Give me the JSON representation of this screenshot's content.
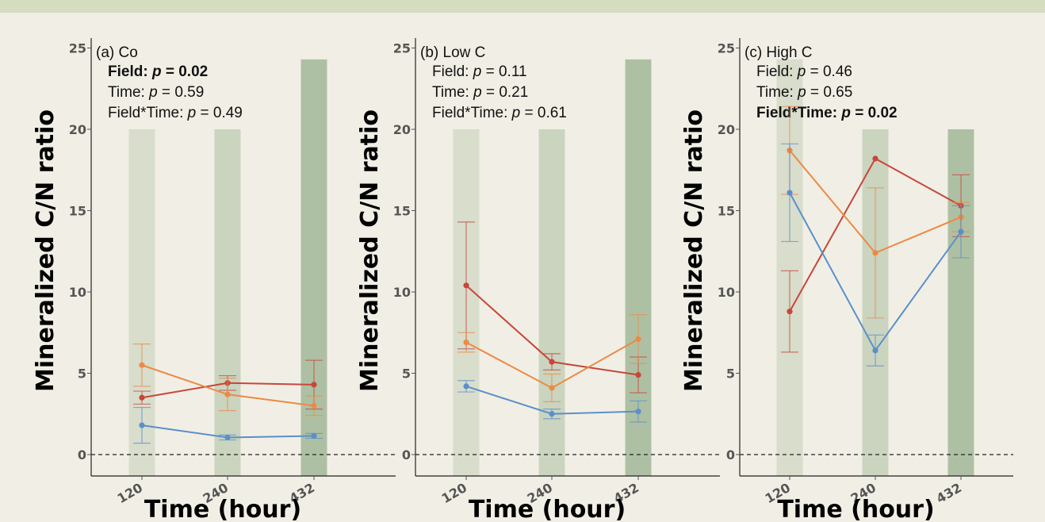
{
  "colors": {
    "red": "#c8463a",
    "orange": "#ec8a45",
    "blue": "#5b8fcb",
    "shade": "#aabd9f"
  },
  "chart_data": [
    {
      "type": "line",
      "title": "(a) Co",
      "xlabel": "Time (hour)",
      "ylabel": "Mineralized C/N ratio",
      "categories": [
        "120",
        "240",
        "432"
      ],
      "ylim": [
        -1,
        25.5
      ],
      "yticks": [
        0,
        5,
        10,
        15,
        20,
        25
      ],
      "grid": false,
      "stats": [
        {
          "label": "Field: ",
          "p": "0.02",
          "bold": true
        },
        {
          "label": "Time: ",
          "p": "0.59",
          "bold": false
        },
        {
          "label": "Field*Time: ",
          "p": "0.49",
          "bold": false
        }
      ],
      "shade_tops": [
        20,
        20,
        24.3
      ],
      "series": [
        {
          "color": "red",
          "values": [
            3.5,
            4.4,
            4.3
          ],
          "err": [
            0.4,
            0.45,
            1.5
          ]
        },
        {
          "color": "orange",
          "values": [
            5.5,
            3.7,
            3.0
          ],
          "err": [
            1.3,
            1.0,
            0.6
          ]
        },
        {
          "color": "blue",
          "values": [
            1.8,
            1.05,
            1.15
          ],
          "err": [
            1.1,
            0.15,
            0.15
          ]
        }
      ]
    },
    {
      "type": "line",
      "title": "(b) Low C",
      "xlabel": "Time (hour)",
      "ylabel": "Mineralized C/N ratio",
      "categories": [
        "120",
        "240",
        "432"
      ],
      "ylim": [
        -1,
        25.5
      ],
      "yticks": [
        0,
        5,
        10,
        15,
        20,
        25
      ],
      "grid": false,
      "stats": [
        {
          "label": "Field: ",
          "p": "0.11",
          "bold": false
        },
        {
          "label": "Time: ",
          "p": "0.21",
          "bold": false
        },
        {
          "label": "Field*Time: ",
          "p": "0.61",
          "bold": false
        }
      ],
      "shade_tops": [
        20,
        20,
        24.3
      ],
      "series": [
        {
          "color": "red",
          "values": [
            10.4,
            5.7,
            4.9
          ],
          "err": [
            3.9,
            0.5,
            1.1
          ]
        },
        {
          "color": "orange",
          "values": [
            6.9,
            4.1,
            7.1
          ],
          "err": [
            0.6,
            0.85,
            1.5
          ]
        },
        {
          "color": "blue",
          "values": [
            4.2,
            2.5,
            2.65
          ],
          "err": [
            0.35,
            0.3,
            0.65
          ]
        }
      ]
    },
    {
      "type": "line",
      "title": "(c) High C",
      "xlabel": "Time (hour)",
      "ylabel": "Mineralized C/N ratio",
      "categories": [
        "120",
        "240",
        "432"
      ],
      "ylim": [
        -1,
        25.5
      ],
      "yticks": [
        0,
        5,
        10,
        15,
        20,
        25
      ],
      "grid": false,
      "stats": [
        {
          "label": "Field: ",
          "p": "0.46",
          "bold": false
        },
        {
          "label": "Time: ",
          "p": "0.65",
          "bold": false
        },
        {
          "label": "Field*Time: ",
          "p": "0.02",
          "bold": true
        }
      ],
      "shade_tops": [
        24.3,
        20,
        20
      ],
      "series": [
        {
          "color": "red",
          "values": [
            8.8,
            18.2,
            15.3
          ],
          "err": [
            2.5,
            0,
            1.9
          ]
        },
        {
          "color": "orange",
          "values": [
            18.7,
            12.4,
            14.6
          ],
          "err": [
            2.7,
            4.0,
            0.9
          ]
        },
        {
          "color": "blue",
          "values": [
            16.1,
            6.4,
            13.7
          ],
          "err": [
            3.0,
            0.95,
            1.6
          ]
        }
      ]
    }
  ]
}
